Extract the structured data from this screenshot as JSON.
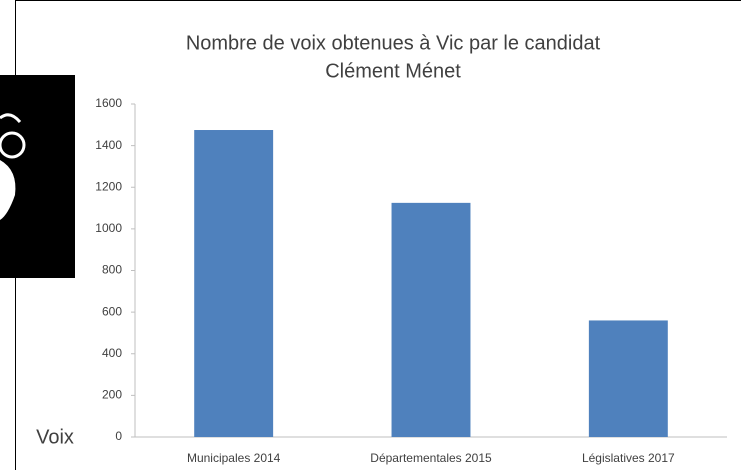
{
  "chart_data": {
    "type": "bar",
    "title": [
      "Nombre de voix obtenues à Vic par le candidat",
      "Clément Ménet"
    ],
    "y_label": "Voix",
    "categories": [
      "Municipales 2014",
      "Départementales 2015",
      "Législatives 2017"
    ],
    "values": [
      1475,
      1125,
      560
    ],
    "color": "#4f81bd",
    "ylim": [
      0,
      1600
    ],
    "yticks": [
      0,
      200,
      400,
      600,
      800,
      1000,
      1200,
      1400,
      1600
    ],
    "grid": false
  }
}
